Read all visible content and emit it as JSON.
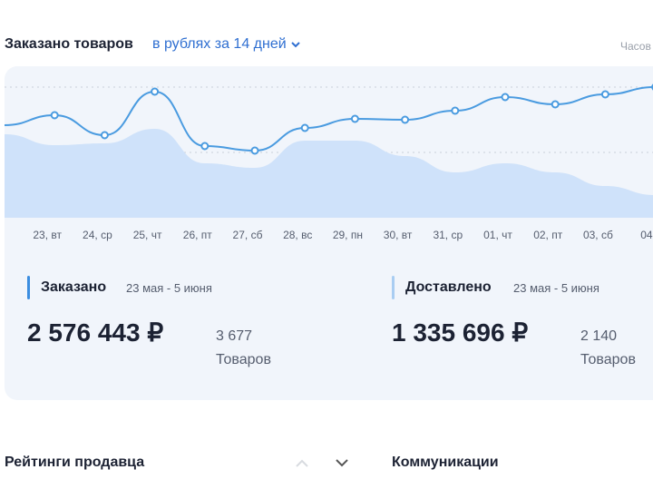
{
  "header": {
    "title": "Заказано товаров",
    "selector": "в рублях за 14 дней",
    "right_link": "Часов"
  },
  "chart_data": {
    "type": "line",
    "categories": [
      null,
      "23, вт",
      "24, ср",
      "25, чт",
      "26, пт",
      "27, сб",
      "28, вс",
      "29, пн",
      "30, вт",
      "31, ср",
      "01, чт",
      "02, пт",
      "03, сб",
      "04,"
    ],
    "series": [
      {
        "color": "#cfe2fa",
        "kind": "area",
        "values": [
          92,
          80,
          82,
          98,
          60,
          55,
          85,
          85,
          68,
          50,
          60,
          50,
          35,
          25
        ]
      },
      {
        "color": "#4a9be0",
        "kind": "line",
        "values": [
          102,
          113,
          91,
          139,
          79,
          74,
          99,
          109,
          108,
          118,
          133,
          125,
          136,
          144
        ]
      }
    ]
  },
  "stats": [
    {
      "label": "Заказано",
      "period": "23 мая - 5 июня",
      "amount": "2 576 443 ₽",
      "count": "3 677",
      "unit": "Товаров",
      "color": "#3b8de0"
    },
    {
      "label": "Доставлено",
      "period": "23 мая - 5 июня",
      "amount": "1 335 696 ₽",
      "count": "2 140",
      "unit": "Товаров",
      "color": "#a9cdf2"
    }
  ],
  "footer": {
    "left": "Рейтинги продавца",
    "right": "Коммуникации"
  }
}
